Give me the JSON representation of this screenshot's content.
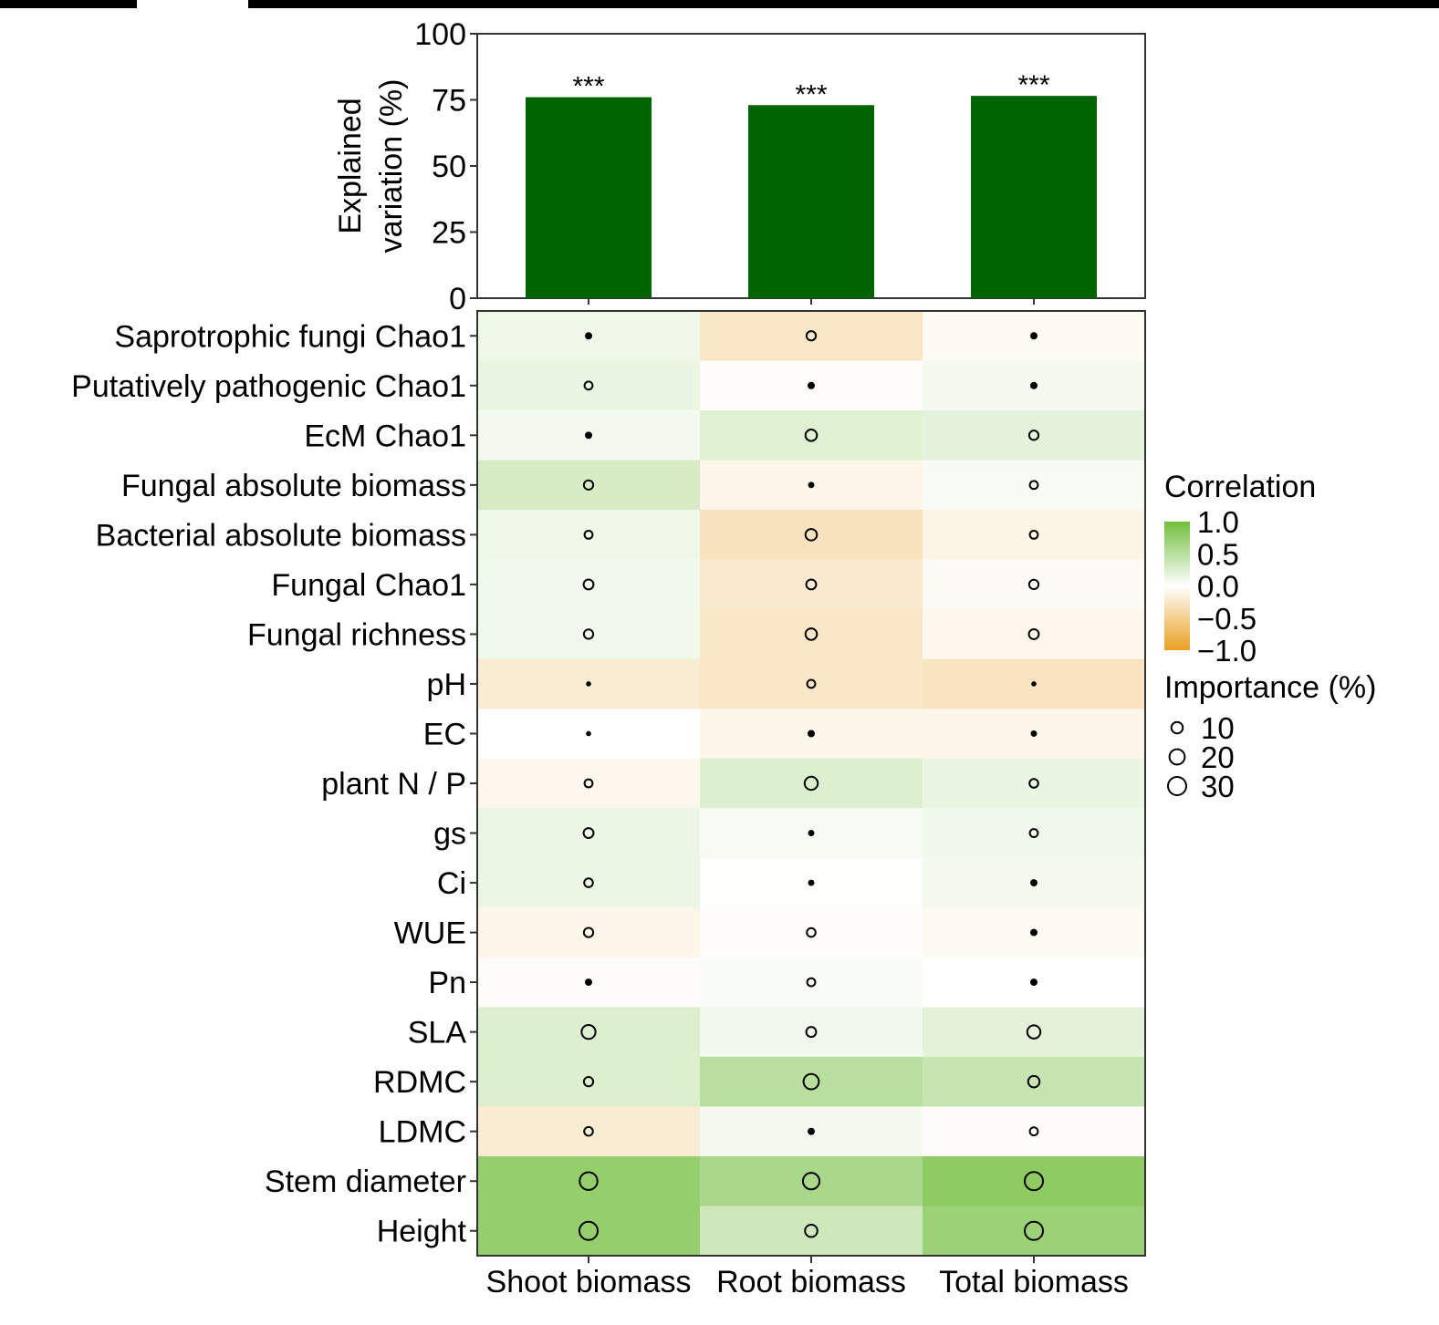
{
  "chart_data": [
    {
      "type": "bar",
      "categories": [
        "Shoot biomass",
        "Root biomass",
        "Total biomass"
      ],
      "values": [
        76,
        73,
        76.5
      ],
      "significance": [
        "***",
        "***",
        "***"
      ],
      "ylabel_lines": [
        "Explained",
        "variation (%)"
      ],
      "ylim": [
        0,
        100
      ],
      "yticks": [
        0,
        25,
        50,
        75,
        100
      ],
      "bar_color": "#006400",
      "grid": false
    },
    {
      "type": "heatmap",
      "rows": [
        "Saprotrophic fungi Chao1",
        "Putatively pathogenic Chao1",
        "EcM Chao1",
        "Fungal absolute biomass",
        "Bacterial absolute biomass",
        "Fungal Chao1",
        "Fungal richness",
        "pH",
        "EC",
        "plant N / P",
        "gs",
        "Ci",
        "WUE",
        "Pn",
        "SLA",
        "RDMC",
        "LDMC",
        "Stem diameter",
        "Height"
      ],
      "columns": [
        "Shoot biomass",
        "Root biomass",
        "Total biomass"
      ],
      "correlation": [
        [
          0.12,
          -0.25,
          -0.05
        ],
        [
          0.15,
          -0.02,
          0.08
        ],
        [
          0.08,
          0.22,
          0.18
        ],
        [
          0.3,
          -0.1,
          0.06
        ],
        [
          0.12,
          -0.3,
          -0.12
        ],
        [
          0.1,
          -0.22,
          -0.04
        ],
        [
          0.1,
          -0.25,
          -0.08
        ],
        [
          -0.2,
          -0.25,
          -0.28
        ],
        [
          0.0,
          -0.1,
          -0.1
        ],
        [
          -0.08,
          0.25,
          0.15
        ],
        [
          0.14,
          0.06,
          0.11
        ],
        [
          0.14,
          0.01,
          0.08
        ],
        [
          -0.1,
          -0.02,
          -0.05
        ],
        [
          -0.03,
          0.04,
          0.0
        ],
        [
          0.25,
          0.1,
          0.2
        ],
        [
          0.25,
          0.5,
          0.4
        ],
        [
          -0.2,
          0.07,
          -0.03
        ],
        [
          0.75,
          0.6,
          0.8
        ],
        [
          0.75,
          0.35,
          0.7
        ]
      ],
      "importance": [
        [
          3,
          6,
          3
        ],
        [
          4,
          3,
          3
        ],
        [
          3,
          10,
          6
        ],
        [
          6,
          2,
          4
        ],
        [
          4,
          10,
          4
        ],
        [
          7,
          7,
          6
        ],
        [
          6,
          10,
          7
        ],
        [
          1,
          4,
          1
        ],
        [
          1,
          3,
          2
        ],
        [
          4,
          14,
          5
        ],
        [
          7,
          2,
          4
        ],
        [
          5,
          2,
          3
        ],
        [
          6,
          5,
          3
        ],
        [
          3,
          4,
          3
        ],
        [
          16,
          7,
          14
        ],
        [
          6,
          20,
          10
        ],
        [
          5,
          3,
          4
        ],
        [
          28,
          24,
          30
        ],
        [
          30,
          12,
          30
        ]
      ],
      "colors": {
        "negative": "#e8a020",
        "zero": "#ffffff",
        "positive": "#72be3c"
      },
      "legend": {
        "position": "right",
        "color_title": "Correlation",
        "color_ticks": [
          "1.0",
          "0.5",
          "0.0",
          "−0.5",
          "−1.0"
        ],
        "size_title": "Importance (%)",
        "size_ticks": [
          10,
          20,
          30
        ]
      }
    }
  ]
}
